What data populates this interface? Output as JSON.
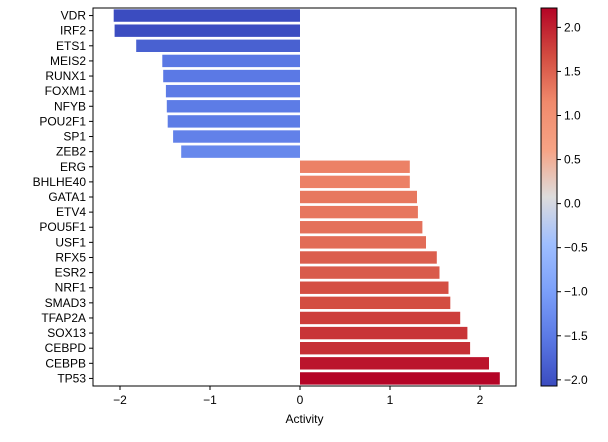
{
  "chart_data": {
    "type": "bar",
    "orientation": "horizontal",
    "xlabel": "Activity",
    "ylabel": "",
    "title": "",
    "xlim": [
      -2.3,
      2.4
    ],
    "xticks": [
      -2,
      -1,
      0,
      1,
      2
    ],
    "grid": false,
    "categories": [
      "VDR",
      "IRF2",
      "ETS1",
      "MEIS2",
      "RUNX1",
      "FOXM1",
      "NFYB",
      "POU2F1",
      "SP1",
      "ZEB2",
      "ERG",
      "BHLHE40",
      "GATA1",
      "ETV4",
      "POU5F1",
      "USF1",
      "RFX5",
      "ESR2",
      "NRF1",
      "SMAD3",
      "TFAP2A",
      "SOX13",
      "CEBPD",
      "CEBPB",
      "TP53"
    ],
    "values": [
      -2.07,
      -2.06,
      -1.82,
      -1.53,
      -1.52,
      -1.49,
      -1.48,
      -1.47,
      -1.41,
      -1.32,
      1.22,
      1.22,
      1.3,
      1.31,
      1.36,
      1.4,
      1.52,
      1.55,
      1.65,
      1.67,
      1.78,
      1.86,
      1.89,
      2.1,
      2.22
    ],
    "colorbar": {
      "colormap": "coolwarm",
      "vmin": -2.07,
      "vmax": 2.22,
      "ticks": [
        -2.0,
        -1.5,
        -1.0,
        -0.5,
        0.0,
        0.5,
        1.0,
        1.5,
        2.0
      ],
      "tick_labels": [
        "−2.0",
        "−1.5",
        "−1.0",
        "−0.5",
        "0.0",
        "0.5",
        "1.0",
        "1.5",
        "2.0"
      ]
    },
    "xtick_labels": [
      "−2",
      "−1",
      "0",
      "1",
      "2"
    ]
  }
}
